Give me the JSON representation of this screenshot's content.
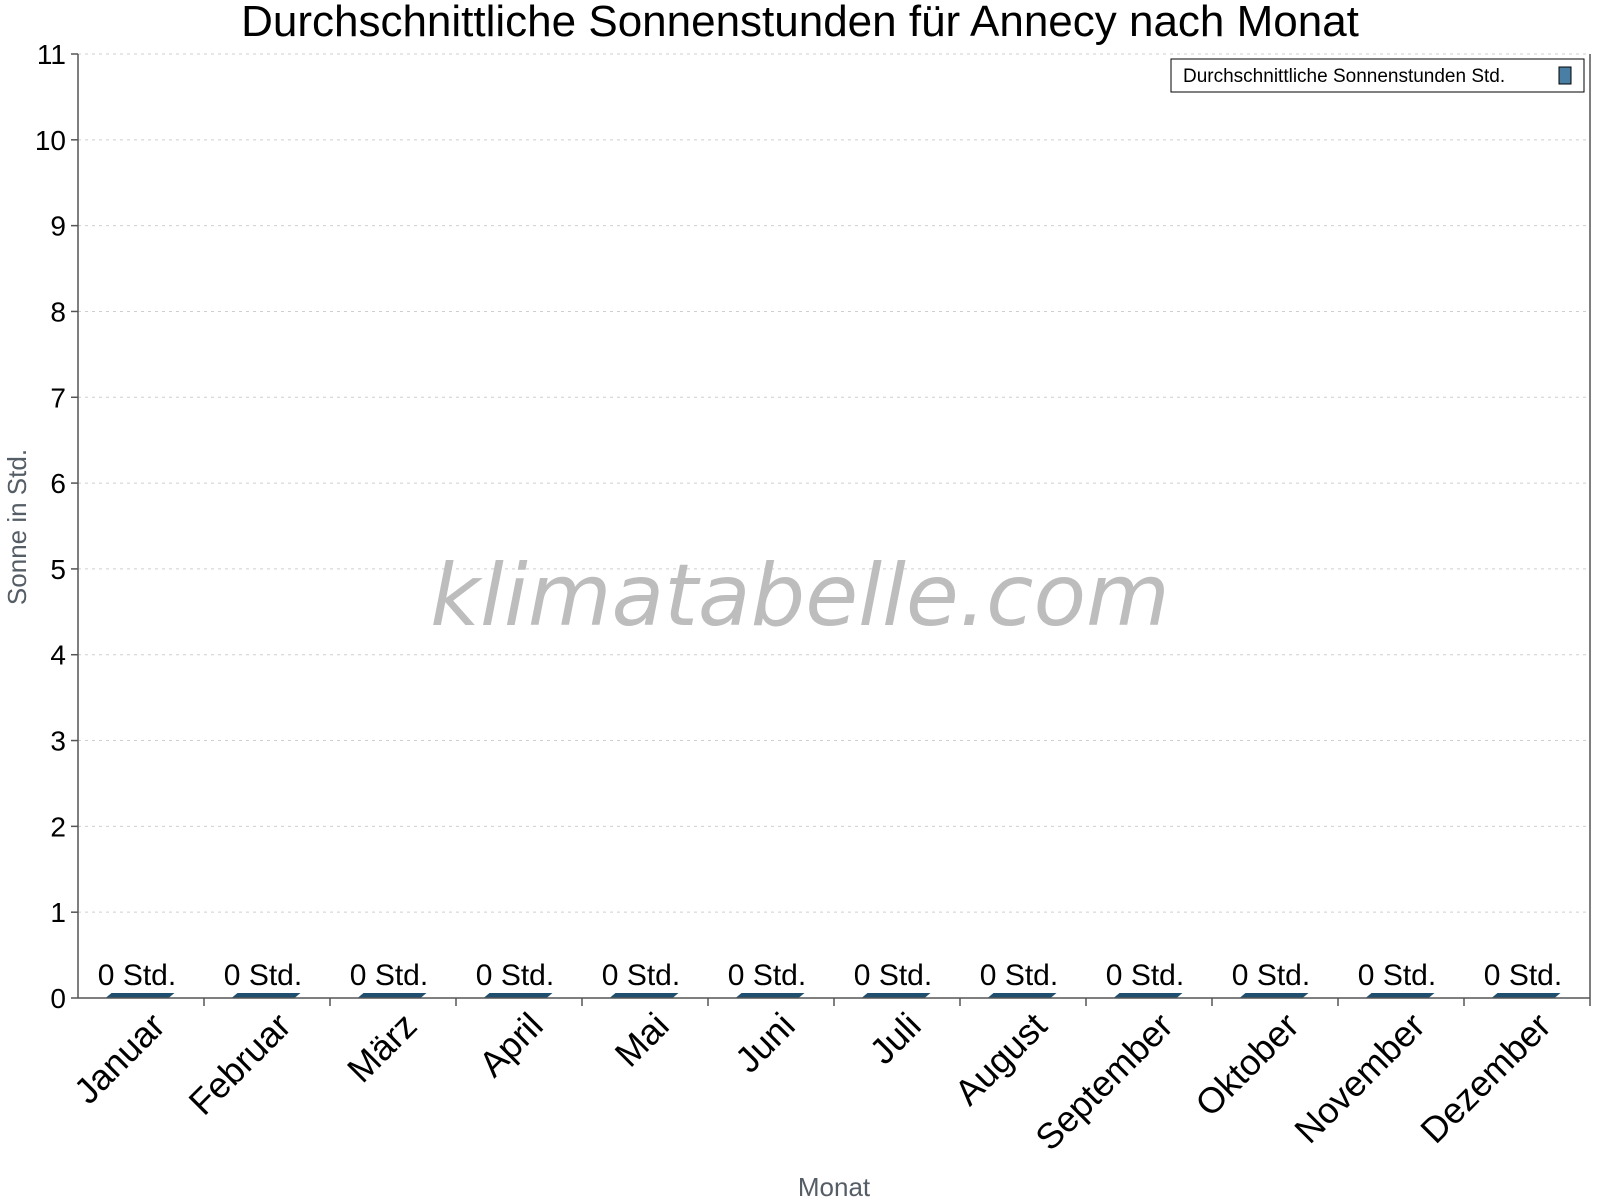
{
  "chart_data": {
    "type": "bar",
    "title": "Durchschnittliche Sonnenstunden für Annecy nach Monat",
    "xlabel": "Monat",
    "ylabel": "Sonne in Std.",
    "categories": [
      "Januar",
      "Februar",
      "März",
      "April",
      "Mai",
      "Juni",
      "Juli",
      "August",
      "September",
      "Oktober",
      "November",
      "Dezember"
    ],
    "series": [
      {
        "name": "Durchschnittliche Sonnenstunden Std.",
        "values": [
          0,
          0,
          0,
          0,
          0,
          0,
          0,
          0,
          0,
          0,
          0,
          0
        ],
        "data_labels": [
          "0 Std.",
          "0 Std.",
          "0 Std.",
          "0 Std.",
          "0 Std.",
          "0 Std.",
          "0 Std.",
          "0 Std.",
          "0 Std.",
          "0 Std.",
          "0 Std.",
          "0 Std."
        ],
        "color": "#1f4e6f"
      }
    ],
    "ylim": [
      0,
      11
    ],
    "yticks": [
      "0",
      "1",
      "2",
      "3",
      "4",
      "5",
      "6",
      "7",
      "8",
      "9",
      "10",
      "11"
    ],
    "grid": true,
    "legend_position": "top-right"
  },
  "watermark": "klimatabelle.com",
  "colors": {
    "bar": "#1f4e6f",
    "legend_swatch": "#4a7fa5"
  }
}
